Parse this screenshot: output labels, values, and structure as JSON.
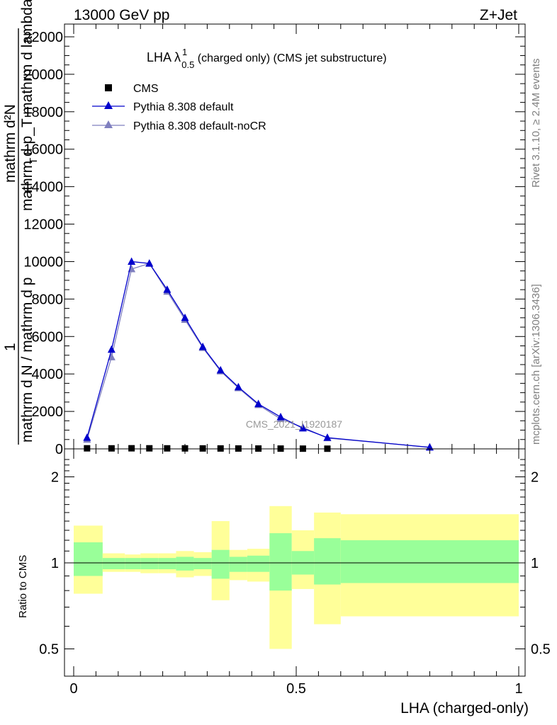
{
  "header": {
    "left": "13000 GeV pp",
    "right": "Z+Jet"
  },
  "side_labels": {
    "rivet": "Rivet 3.1.10, ≥ 2.4M events",
    "mcplots": "mcplots.cern.ch [arXiv:1306.3436]"
  },
  "watermark": "CMS_2021_I1920187",
  "main_title": {
    "prefix": "LHA λ",
    "sup": "1",
    "sub": "0.5",
    "suffix": " (charged only) (CMS jet substructure)"
  },
  "ylabel_main": {
    "line1": "mathrm d²N",
    "line2": "mathrm d p_T mathrm d lambda",
    "sub": "T",
    "one": "1",
    "line3": "mathrm d N / mathrm d p"
  },
  "ylabel_ratio": "Ratio to CMS",
  "xlabel": "LHA (charged-only)",
  "colors": {
    "cms": "#000000",
    "default": "#0000cc",
    "nocr": "#7f7fbf",
    "band_outer": "#ffff99",
    "band_inner": "#99ff99"
  },
  "chart_data": [
    {
      "type": "line",
      "panel": "main",
      "xlim": [
        0,
        1
      ],
      "ylim": [
        0,
        22500
      ],
      "y_ticks": [
        0,
        2000,
        4000,
        6000,
        8000,
        10000,
        12000,
        14000,
        16000,
        18000,
        20000,
        22000
      ],
      "y_tick_labels": [
        "0",
        "2000",
        "4000",
        "6000",
        "8000",
        "10000",
        "12000",
        "14000",
        "16000",
        "18000",
        "20000",
        "22000"
      ],
      "legend": {
        "placement": "top-left",
        "entries": [
          "CMS",
          "Pythia 8.308 default",
          "Pythia 8.308 default-noCR"
        ]
      },
      "series": [
        {
          "name": "CMS",
          "style": "square-markers",
          "x": [
            0.03,
            0.085,
            0.13,
            0.17,
            0.21,
            0.25,
            0.29,
            0.33,
            0.37,
            0.415,
            0.465,
            0.515,
            0.57
          ],
          "values": [
            30,
            28,
            32,
            30,
            28,
            26,
            24,
            22,
            20,
            18,
            15,
            12,
            10
          ]
        },
        {
          "name": "Pythia 8.308 default",
          "style": "line-triangle",
          "x": [
            0.03,
            0.085,
            0.13,
            0.17,
            0.21,
            0.25,
            0.29,
            0.33,
            0.37,
            0.415,
            0.465,
            0.515,
            0.57,
            0.8
          ],
          "values": [
            600,
            5300,
            10000,
            9900,
            8500,
            7000,
            5450,
            4200,
            3300,
            2400,
            1700,
            1100,
            600,
            80
          ]
        },
        {
          "name": "Pythia 8.308 default-noCR",
          "style": "line-triangle",
          "x": [
            0.03,
            0.085,
            0.13,
            0.17,
            0.21,
            0.25,
            0.29,
            0.33,
            0.37,
            0.415,
            0.465,
            0.515,
            0.57,
            0.8
          ],
          "values": [
            500,
            4900,
            9600,
            9900,
            8400,
            6900,
            5400,
            4150,
            3250,
            2350,
            1600,
            1150,
            580,
            90
          ]
        }
      ]
    },
    {
      "type": "area",
      "panel": "ratio",
      "xlim": [
        0,
        1
      ],
      "ylim": [
        0.35,
        2.35
      ],
      "y_ticks": [
        0.5,
        1,
        2
      ],
      "y_tick_labels": [
        "0.5",
        "1",
        "2"
      ],
      "x_ticks": [
        0,
        0.5,
        1
      ],
      "x_tick_labels": [
        "0",
        "0.5",
        "1"
      ],
      "bins": [
        {
          "lo": 0.0,
          "hi": 0.065,
          "outer": [
            0.78,
            1.35
          ],
          "inner": [
            0.9,
            1.18
          ]
        },
        {
          "lo": 0.065,
          "hi": 0.115,
          "outer": [
            0.93,
            1.08
          ],
          "inner": [
            0.95,
            1.04
          ]
        },
        {
          "lo": 0.115,
          "hi": 0.15,
          "outer": [
            0.93,
            1.07
          ],
          "inner": [
            0.95,
            1.04
          ]
        },
        {
          "lo": 0.15,
          "hi": 0.19,
          "outer": [
            0.92,
            1.08
          ],
          "inner": [
            0.95,
            1.04
          ]
        },
        {
          "lo": 0.19,
          "hi": 0.23,
          "outer": [
            0.92,
            1.08
          ],
          "inner": [
            0.95,
            1.04
          ]
        },
        {
          "lo": 0.23,
          "hi": 0.27,
          "outer": [
            0.89,
            1.1
          ],
          "inner": [
            0.94,
            1.05
          ]
        },
        {
          "lo": 0.27,
          "hi": 0.31,
          "outer": [
            0.9,
            1.09
          ],
          "inner": [
            0.95,
            1.04
          ]
        },
        {
          "lo": 0.31,
          "hi": 0.35,
          "outer": [
            0.74,
            1.4
          ],
          "inner": [
            0.88,
            1.11
          ]
        },
        {
          "lo": 0.35,
          "hi": 0.39,
          "outer": [
            0.87,
            1.11
          ],
          "inner": [
            0.93,
            1.05
          ]
        },
        {
          "lo": 0.39,
          "hi": 0.44,
          "outer": [
            0.86,
            1.12
          ],
          "inner": [
            0.93,
            1.06
          ]
        },
        {
          "lo": 0.44,
          "hi": 0.49,
          "outer": [
            0.5,
            1.58
          ],
          "inner": [
            0.8,
            1.27
          ]
        },
        {
          "lo": 0.49,
          "hi": 0.54,
          "outer": [
            0.81,
            1.3
          ],
          "inner": [
            0.91,
            1.1
          ]
        },
        {
          "lo": 0.54,
          "hi": 0.6,
          "outer": [
            0.61,
            1.5
          ],
          "inner": [
            0.84,
            1.22
          ]
        },
        {
          "lo": 0.6,
          "hi": 1.0,
          "outer": [
            0.65,
            1.48
          ],
          "inner": [
            0.85,
            1.2
          ]
        }
      ]
    }
  ]
}
